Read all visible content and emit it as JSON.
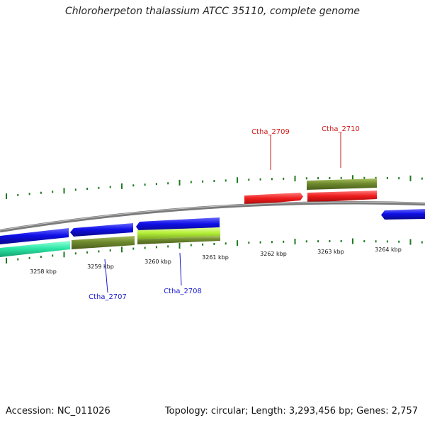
{
  "title": "Chloroherpeton thalassium ATCC 35110, complete genome",
  "footer": {
    "accession": "Accession: NC_011026",
    "summary": "Topology: circular; Length: 3,293,456 bp; Genes: 2,757"
  },
  "scale": {
    "labels": [
      "3258 kbp",
      "3259 kbp",
      "3260 kbp",
      "3261 kbp",
      "3262 kbp",
      "3263 kbp",
      "3264 kbp"
    ]
  },
  "gene_labels": [
    {
      "name": "Ctha_2707",
      "strand": "minus",
      "color": "#1a1ad0"
    },
    {
      "name": "Ctha_2708",
      "strand": "minus",
      "color": "#1a1ad0"
    },
    {
      "name": "Ctha_2709",
      "strand": "plus",
      "color": "#d01a1a"
    },
    {
      "name": "Ctha_2710",
      "strand": "plus",
      "color": "#d01a1a"
    }
  ],
  "colors": {
    "backbone": "#8a8a8a",
    "forward_cds": "#ee1c1c",
    "reverse_cds": "#1010e8",
    "olive": "#6e8a2e",
    "lime": "#b6f03a",
    "aqua": "#2ee8a8",
    "ticks": "#1f7a1f"
  }
}
